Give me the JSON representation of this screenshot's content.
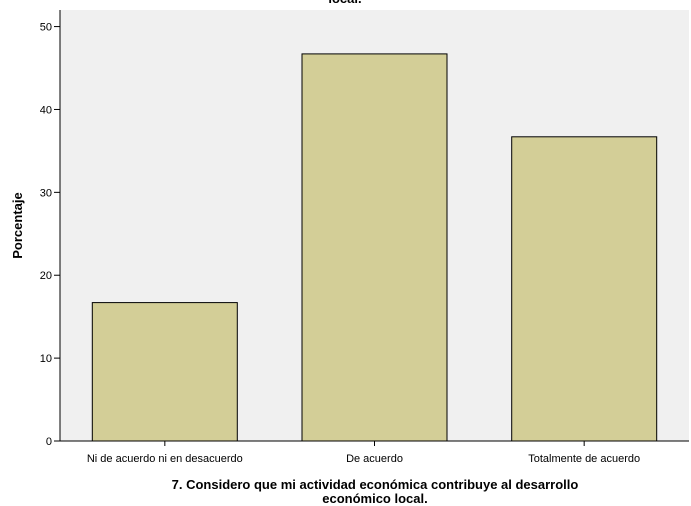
{
  "chart_data": {
    "type": "bar",
    "title_fragment": "local.",
    "categories": [
      "Ni de acuerdo ni en desacuerdo",
      "De acuerdo",
      "Totalmente de acuerdo"
    ],
    "values": [
      16.7,
      46.7,
      36.7
    ],
    "xlabel_lines": [
      "7.  Considero que mi actividad económica contribuye al desarrollo",
      "económico local."
    ],
    "ylabel": "Porcentaje",
    "ylim": [
      0,
      52
    ],
    "yticks": [
      0,
      10,
      20,
      30,
      40,
      50
    ],
    "grid": false,
    "colors": {
      "plot_background": "#f0f0f0",
      "bar_fill": "#d3ce97",
      "bar_stroke": "#000000",
      "axis": "#000000"
    }
  }
}
